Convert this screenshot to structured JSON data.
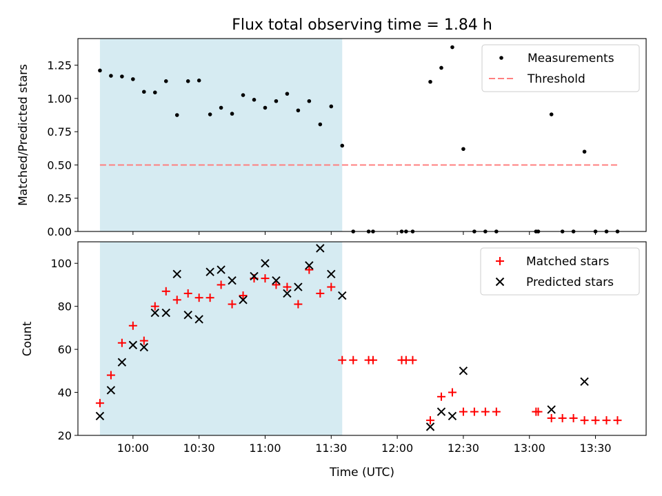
{
  "chart_data": {
    "title": "Flux total observing time = 1.84 h",
    "xlabel": "Time (UTC)",
    "x_unit": "UTC time (HH:MM)",
    "xlim": [
      "09:35",
      "13:53"
    ],
    "x_ticks": [
      "10:00",
      "10:30",
      "11:00",
      "11:30",
      "12:00",
      "12:30",
      "13:00",
      "13:30"
    ],
    "shaded_interval": {
      "start": "09:45",
      "end": "11:35",
      "color": "#add8e6"
    },
    "panels": [
      {
        "type": "scatter",
        "ylabel": "Matched/Predicted stars",
        "ylim": [
          0,
          1.45
        ],
        "y_ticks": [
          "0.00",
          "0.25",
          "0.50",
          "0.75",
          "1.00",
          "1.25"
        ],
        "legend_position": "top-right",
        "series": [
          {
            "name": "Measurements",
            "marker": "dot",
            "color": "#000000",
            "x": [
              "09:45",
              "09:50",
              "09:55",
              "10:00",
              "10:05",
              "10:10",
              "10:15",
              "10:20",
              "10:25",
              "10:30",
              "10:35",
              "10:40",
              "10:45",
              "10:50",
              "10:55",
              "11:00",
              "11:05",
              "11:10",
              "11:15",
              "11:20",
              "11:25",
              "11:30",
              "11:35",
              "11:40",
              "11:47",
              "11:49",
              "12:02",
              "12:04",
              "12:07",
              "12:15",
              "12:20",
              "12:25",
              "12:30",
              "12:35",
              "12:40",
              "12:45",
              "13:03",
              "13:04",
              "13:10",
              "13:15",
              "13:20",
              "13:25",
              "13:30",
              "13:35",
              "13:40"
            ],
            "y": [
              1.21,
              1.17,
              1.165,
              1.145,
              1.05,
              1.045,
              1.13,
              0.875,
              1.13,
              1.135,
              0.88,
              0.93,
              0.885,
              1.025,
              0.99,
              0.93,
              0.98,
              1.035,
              0.91,
              0.98,
              0.805,
              0.94,
              0.645,
              0,
              0,
              0,
              0,
              0,
              0,
              1.125,
              1.23,
              1.385,
              0.62,
              0,
              0,
              0,
              0,
              0,
              0.88,
              0,
              0,
              0.6,
              0,
              0,
              0
            ]
          },
          {
            "name": "Threshold",
            "type": "line",
            "style": "dashed",
            "color": "#ff7f7f",
            "x": [
              "09:45",
              "13:40"
            ],
            "y": [
              0.5,
              0.5
            ]
          }
        ]
      },
      {
        "type": "scatter",
        "ylabel": "Count",
        "ylim": [
          20,
          110
        ],
        "y_ticks": [
          "20",
          "40",
          "60",
          "80",
          "100"
        ],
        "legend_position": "top-right",
        "series": [
          {
            "name": "Matched stars",
            "marker": "plus",
            "color": "#ff0000",
            "x": [
              "09:45",
              "09:50",
              "09:55",
              "10:00",
              "10:05",
              "10:10",
              "10:15",
              "10:20",
              "10:25",
              "10:30",
              "10:35",
              "10:40",
              "10:45",
              "10:50",
              "10:55",
              "11:00",
              "11:05",
              "11:10",
              "11:15",
              "11:20",
              "11:25",
              "11:30",
              "11:35",
              "11:40",
              "11:47",
              "11:49",
              "12:02",
              "12:04",
              "12:07",
              "12:15",
              "12:20",
              "12:25",
              "12:30",
              "12:35",
              "12:40",
              "12:45",
              "13:03",
              "13:04",
              "13:10",
              "13:15",
              "13:20",
              "13:25",
              "13:30",
              "13:35",
              "13:40"
            ],
            "y": [
              35,
              48,
              63,
              71,
              64,
              80,
              87,
              83,
              86,
              84,
              84,
              90,
              81,
              85,
              93,
              93,
              90,
              89,
              81,
              97,
              86,
              89,
              55,
              55,
              55,
              55,
              55,
              55,
              55,
              27,
              38,
              40,
              31,
              31,
              31,
              31,
              31,
              31,
              28,
              28,
              28,
              27,
              27,
              27,
              27
            ]
          },
          {
            "name": "Predicted stars",
            "marker": "x",
            "color": "#000000",
            "x": [
              "09:45",
              "09:50",
              "09:55",
              "10:00",
              "10:05",
              "10:10",
              "10:15",
              "10:20",
              "10:25",
              "10:30",
              "10:35",
              "10:40",
              "10:45",
              "10:50",
              "10:55",
              "11:00",
              "11:05",
              "11:10",
              "11:15",
              "11:20",
              "11:25",
              "11:30",
              "11:35",
              "12:15",
              "12:20",
              "12:25",
              "12:30",
              "13:10",
              "13:25"
            ],
            "y": [
              29,
              41,
              54,
              62,
              61,
              77,
              77,
              95,
              76,
              74,
              96,
              97,
              92,
              83,
              94,
              100,
              92,
              86,
              89,
              99,
              107,
              95,
              85,
              24,
              31,
              29,
              50,
              32,
              45
            ]
          }
        ]
      }
    ]
  }
}
